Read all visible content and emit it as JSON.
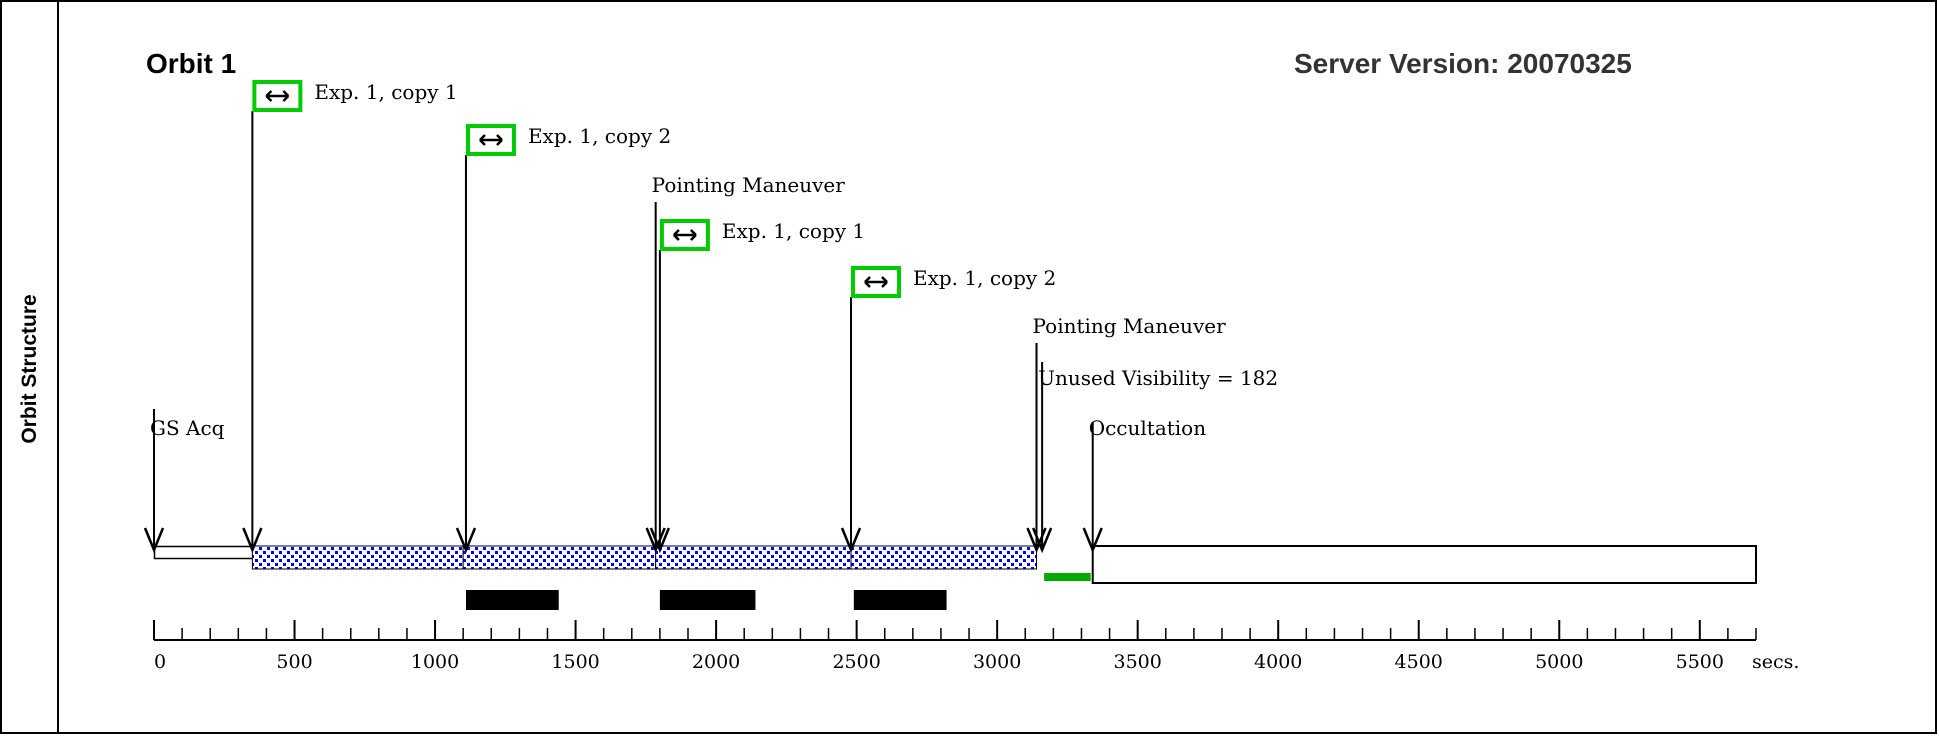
{
  "panel": {
    "side_label": "Orbit Structure",
    "orbit_title": "Orbit 1",
    "server_version": "Server Version: 20070325"
  },
  "colors": {
    "exposure_box": "#00cc00",
    "dot_fill": "#0000ff",
    "dead_time": "#00aa00",
    "axis": "#000000"
  },
  "timeline": {
    "axis_min": 0,
    "axis_max": 5700,
    "axis_unit": "secs.",
    "ticks": [
      0,
      500,
      1000,
      1500,
      2000,
      2500,
      3000,
      3500,
      4000,
      4500,
      5000,
      5500
    ],
    "minor_step": 100,
    "gs_acq": {
      "label": "GS Acq",
      "start": 0,
      "end": 350
    },
    "dotted_segments": [
      {
        "start": 350,
        "end": 1100
      },
      {
        "start": 1100,
        "end": 1785
      },
      {
        "start": 1785,
        "end": 2480
      },
      {
        "start": 2480,
        "end": 3140
      }
    ],
    "unused_visibility": {
      "start": 3160,
      "end": 3340,
      "label": "Unused Visibility = 182"
    },
    "occultation": {
      "label": "Occultation",
      "start": 3340,
      "end": 5700
    },
    "black_bars": [
      {
        "start": 1110,
        "end": 1440
      },
      {
        "start": 1800,
        "end": 2140
      },
      {
        "start": 2490,
        "end": 2820
      }
    ],
    "events": [
      {
        "label": "GS Acq",
        "t": 0,
        "icon": false
      },
      {
        "label": "Exp. 1, copy 1",
        "t": 350,
        "icon": true
      },
      {
        "label": "Exp. 1, copy 2",
        "t": 1110,
        "icon": true
      },
      {
        "label": "Pointing Maneuver",
        "t": 1785,
        "icon": false
      },
      {
        "label": "Exp. 1, copy 1",
        "t": 1800,
        "icon": true
      },
      {
        "label": "Exp. 1, copy 2",
        "t": 2480,
        "icon": true
      },
      {
        "label": "Pointing Maneuver",
        "t": 3140,
        "icon": false
      },
      {
        "label": "Unused Visibility = 182",
        "t": 3160,
        "icon": false
      },
      {
        "label": "Occultation",
        "t": 3340,
        "icon": false
      }
    ]
  }
}
